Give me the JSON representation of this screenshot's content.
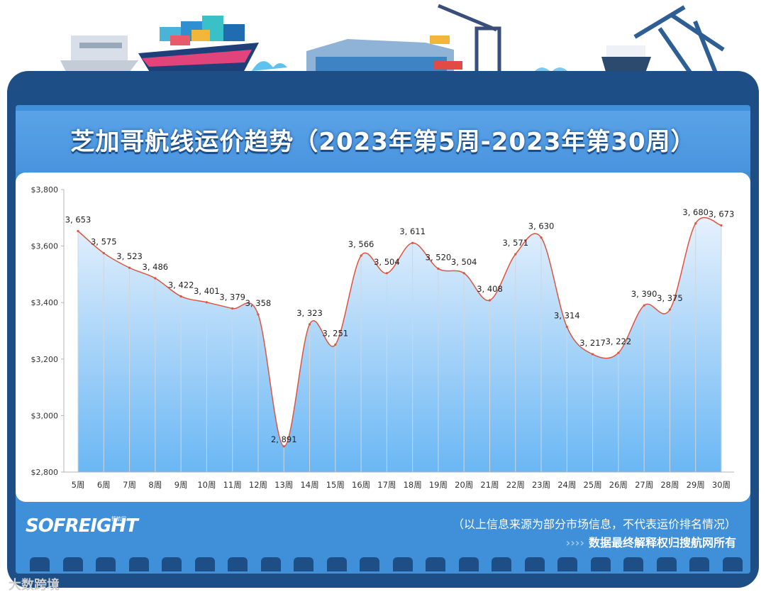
{
  "title": "芝加哥航线运价趋势（2023年第5周-2023年第30周）",
  "footer": {
    "logo": "SOFREIGHT",
    "logo_sub": "搜航网",
    "note": "（以上信息来源为部分市场信息，不代表运价排名情况）",
    "rights_arrows": "››››",
    "rights": "数据最终解释权归搜航网所有"
  },
  "watermark": "大数跨境",
  "colors": {
    "frame": "#1d4f86",
    "panel": "#3f8fd9",
    "line": "#e0533d",
    "area_top": "#e6f1fd",
    "area_bottom": "#6ab7f4"
  },
  "chart_data": {
    "type": "area",
    "title": "",
    "xlabel": "",
    "ylabel": "",
    "ylim": [
      2800,
      3800
    ],
    "y_ticks": [
      "$2,800",
      "$3,000",
      "$3,200",
      "$3,400",
      "$3,600",
      "$3,800"
    ],
    "y_tick_values": [
      2800,
      3000,
      3200,
      3400,
      3600,
      3800
    ],
    "grid": false,
    "categories": [
      "5周",
      "6周",
      "7周",
      "8周",
      "9周",
      "10周",
      "11周",
      "12周",
      "13周",
      "14周",
      "15周",
      "16周",
      "17周",
      "18周",
      "19周",
      "20周",
      "21周",
      "22周",
      "23周",
      "24周",
      "25周",
      "26周",
      "27周",
      "28周",
      "29周",
      "30周"
    ],
    "values": [
      3653,
      3575,
      3523,
      3486,
      3422,
      3401,
      3379,
      3358,
      2891,
      3323,
      3251,
      3566,
      3504,
      3611,
      3520,
      3504,
      3408,
      3571,
      3630,
      3314,
      3217,
      3222,
      3390,
      3375,
      3680,
      3673
    ],
    "value_labels": [
      "3, 653",
      "3, 575",
      "3, 523",
      "3, 486",
      "3, 422",
      "3, 401",
      "3, 379",
      "3, 358",
      "2, 891",
      "3, 323",
      "3, 251",
      "3, 566",
      "3, 504",
      "3, 611",
      "3, 520",
      "3, 504",
      "3, 408",
      "3, 571",
      "3, 630",
      "3, 314",
      "3, 217",
      "3, 222",
      "3, 390",
      "3, 375",
      "3, 680",
      "3, 673"
    ]
  }
}
